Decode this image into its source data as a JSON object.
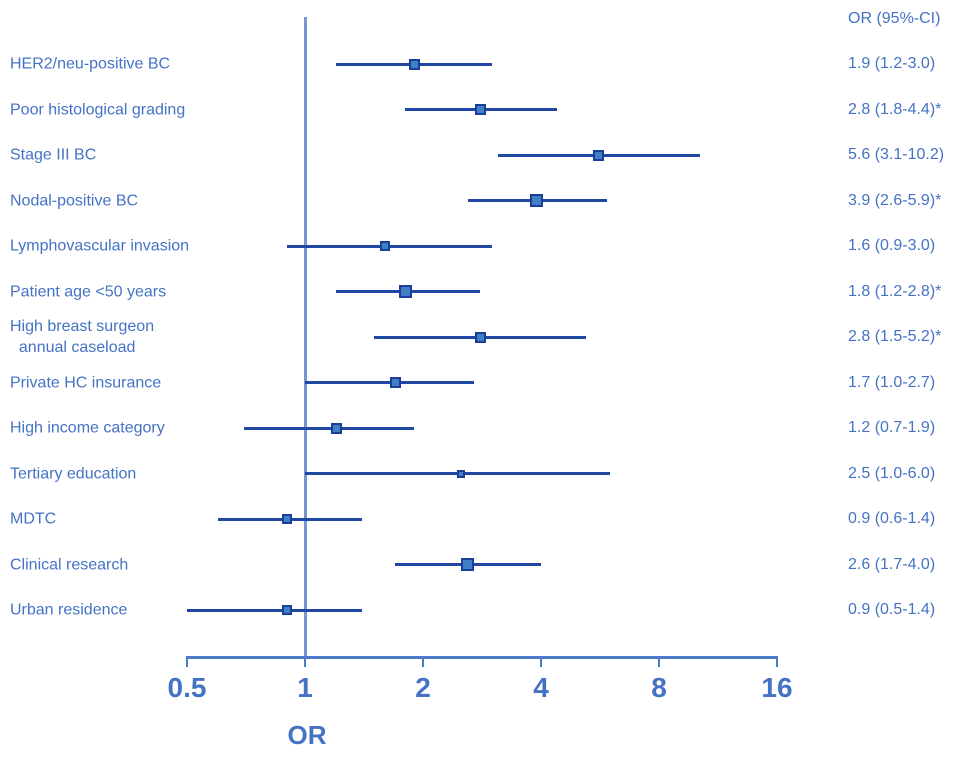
{
  "colors": {
    "accent": "#4472C4",
    "ci_line": "#1F47A3",
    "marker_fill": "#3F80C4",
    "marker_border": "#1A3E99",
    "ref_line": "#7697CE",
    "axis": "#4C7BC9"
  },
  "chart_data": {
    "type": "scatter",
    "variant": "forest-plot",
    "title": "",
    "xlabel": "OR",
    "x_scale": "log2",
    "xlim": [
      0.5,
      16
    ],
    "x_ticks": [
      "0.5",
      "1",
      "2",
      "4",
      "8",
      "16"
    ],
    "x_tick_values": [
      0.5,
      1,
      2,
      4,
      8,
      16
    ],
    "reference_line_x": 1,
    "grid": false,
    "legend": "none",
    "value_column_header": "OR (95%-CI)",
    "rows": [
      {
        "label": "HER2/neu-positive BC",
        "or": 1.9,
        "ci_low": 1.2,
        "ci_high": 3.0,
        "display": "1.9 (1.2-3.0)",
        "significant": false,
        "marker_size": 11
      },
      {
        "label": "Poor histological grading",
        "or": 2.8,
        "ci_low": 1.8,
        "ci_high": 4.4,
        "display": "2.8 (1.8-4.4)*",
        "significant": true,
        "marker_size": 11
      },
      {
        "label": "Stage III BC",
        "or": 5.6,
        "ci_low": 3.1,
        "ci_high": 10.2,
        "display": "5.6 (3.1-10.2)",
        "significant": false,
        "marker_size": 11
      },
      {
        "label": "Nodal-positive BC",
        "or": 3.9,
        "ci_low": 2.6,
        "ci_high": 5.9,
        "display": "3.9 (2.6-5.9)*",
        "significant": true,
        "marker_size": 13
      },
      {
        "label": "Lymphovascular invasion",
        "or": 1.6,
        "ci_low": 0.9,
        "ci_high": 3.0,
        "display": "1.6 (0.9-3.0)",
        "significant": false,
        "marker_size": 10
      },
      {
        "label": "Patient age <50 years",
        "or": 1.8,
        "ci_low": 1.2,
        "ci_high": 2.8,
        "display": "1.8 (1.2-2.8)*",
        "significant": true,
        "marker_size": 13
      },
      {
        "label": "High breast surgeon\n  annual caseload",
        "or": 2.8,
        "ci_low": 1.5,
        "ci_high": 5.2,
        "display": "2.8 (1.5-5.2)*",
        "significant": true,
        "marker_size": 11
      },
      {
        "label": "Private HC insurance",
        "or": 1.7,
        "ci_low": 1.0,
        "ci_high": 2.7,
        "display": "1.7 (1.0-2.7)",
        "significant": false,
        "marker_size": 11
      },
      {
        "label": "High income category",
        "or": 1.2,
        "ci_low": 0.7,
        "ci_high": 1.9,
        "display": "1.2 (0.7-1.9)",
        "significant": false,
        "marker_size": 11
      },
      {
        "label": "Tertiary education",
        "or": 2.5,
        "ci_low": 1.0,
        "ci_high": 6.0,
        "display": "2.5 (1.0-6.0)",
        "significant": false,
        "marker_size": 8
      },
      {
        "label": "MDTC",
        "or": 0.9,
        "ci_low": 0.6,
        "ci_high": 1.4,
        "display": "0.9 (0.6-1.4)",
        "significant": false,
        "marker_size": 10
      },
      {
        "label": "Clinical research",
        "or": 2.6,
        "ci_low": 1.7,
        "ci_high": 4.0,
        "display": "2.6 (1.7-4.0)",
        "significant": false,
        "marker_size": 13
      },
      {
        "label": "Urban residence",
        "or": 0.9,
        "ci_low": 0.5,
        "ci_high": 1.4,
        "display": "0.9 (0.5-1.4)",
        "significant": false,
        "marker_size": 10
      }
    ]
  }
}
